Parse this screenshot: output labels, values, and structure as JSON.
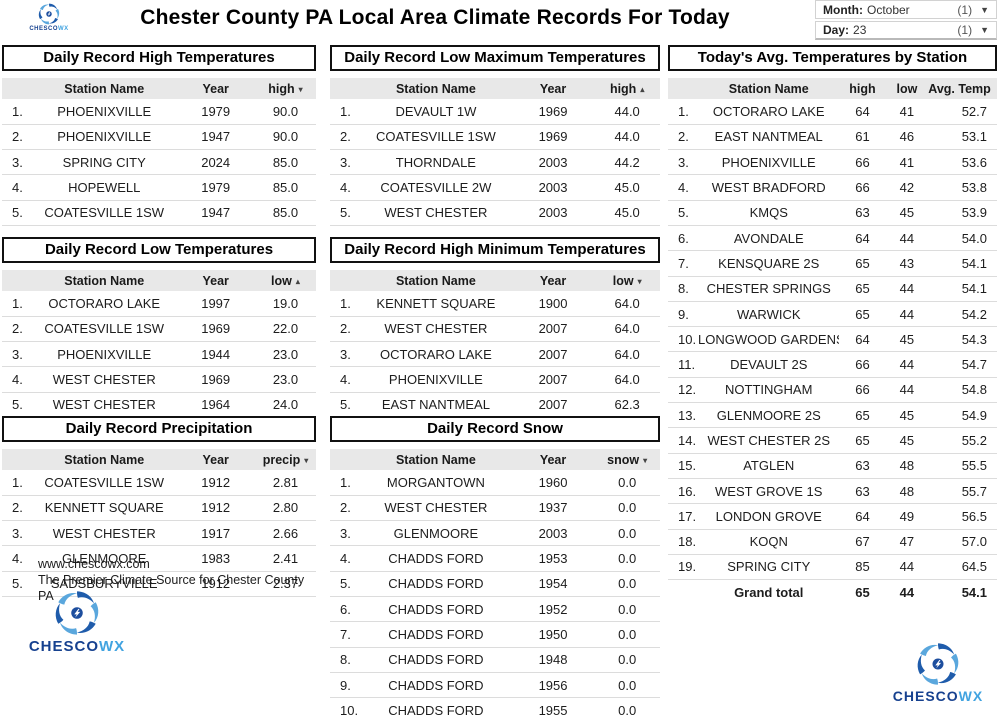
{
  "header": {
    "title": "Chester County PA Local Area Climate Records For Today",
    "filters": {
      "month": {
        "label": "Month:",
        "value": "October",
        "count": "(1)"
      },
      "day": {
        "label": "Day:",
        "value": "23",
        "count": "(1)"
      }
    }
  },
  "logo": {
    "primary": "CHESCO",
    "secondary": "WX"
  },
  "footer": {
    "url": "www.chescowx.com",
    "tagline": "The Premier Climate Source for Chester County PA"
  },
  "tables": {
    "record_high": {
      "title": "Daily Record High Temperatures",
      "columns": [
        {
          "label": "Station Name"
        },
        {
          "label": "Year"
        },
        {
          "label": "high",
          "sort": "desc"
        }
      ],
      "rows": [
        [
          "PHOENIXVILLE",
          "1979",
          "90.0"
        ],
        [
          "PHOENIXVILLE",
          "1947",
          "90.0"
        ],
        [
          "SPRING CITY",
          "2024",
          "85.0"
        ],
        [
          "HOPEWELL",
          "1979",
          "85.0"
        ],
        [
          "COATESVILLE 1SW",
          "1947",
          "85.0"
        ]
      ]
    },
    "record_low_max": {
      "title": "Daily Record Low Maximum Temperatures",
      "columns": [
        {
          "label": "Station Name"
        },
        {
          "label": "Year"
        },
        {
          "label": "high",
          "sort": "asc"
        }
      ],
      "rows": [
        [
          "DEVAULT 1W",
          "1969",
          "44.0"
        ],
        [
          "COATESVILLE 1SW",
          "1969",
          "44.0"
        ],
        [
          "THORNDALE",
          "2003",
          "44.2"
        ],
        [
          "COATESVILLE 2W",
          "2003",
          "45.0"
        ],
        [
          "WEST CHESTER",
          "2003",
          "45.0"
        ]
      ]
    },
    "record_low": {
      "title": "Daily Record Low Temperatures",
      "columns": [
        {
          "label": "Station Name"
        },
        {
          "label": "Year"
        },
        {
          "label": "low",
          "sort": "asc"
        }
      ],
      "rows": [
        [
          "OCTORARO LAKE",
          "1997",
          "19.0"
        ],
        [
          "COATESVILLE 1SW",
          "1969",
          "22.0"
        ],
        [
          "PHOENIXVILLE",
          "1944",
          "23.0"
        ],
        [
          "WEST CHESTER",
          "1969",
          "23.0"
        ],
        [
          "WEST CHESTER",
          "1964",
          "24.0"
        ]
      ]
    },
    "record_high_min": {
      "title": "Daily Record High Minimum Temperatures",
      "columns": [
        {
          "label": "Station Name"
        },
        {
          "label": "Year"
        },
        {
          "label": "low",
          "sort": "desc"
        }
      ],
      "rows": [
        [
          "KENNETT SQUARE",
          "1900",
          "64.0"
        ],
        [
          "WEST CHESTER",
          "2007",
          "64.0"
        ],
        [
          "OCTORARO LAKE",
          "2007",
          "64.0"
        ],
        [
          "PHOENIXVILLE",
          "2007",
          "64.0"
        ],
        [
          "EAST NANTMEAL",
          "2007",
          "62.3"
        ]
      ]
    },
    "record_precip": {
      "title": "Daily Record Precipitation",
      "columns": [
        {
          "label": "Station Name"
        },
        {
          "label": "Year"
        },
        {
          "label": "precip",
          "sort": "desc"
        }
      ],
      "rows": [
        [
          "COATESVILLE 1SW",
          "1912",
          "2.81"
        ],
        [
          "KENNETT SQUARE",
          "1912",
          "2.80"
        ],
        [
          "WEST CHESTER",
          "1917",
          "2.66"
        ],
        [
          "GLENMOORE",
          "1983",
          "2.41"
        ],
        [
          "SADSBURYVILLE",
          "1912",
          "2.37"
        ]
      ]
    },
    "record_snow": {
      "title": "Daily Record Snow",
      "columns": [
        {
          "label": "Station Name"
        },
        {
          "label": "Year"
        },
        {
          "label": "snow",
          "sort": "desc"
        }
      ],
      "rows": [
        [
          "MORGANTOWN",
          "1960",
          "0.0"
        ],
        [
          "WEST CHESTER",
          "1937",
          "0.0"
        ],
        [
          "GLENMOORE",
          "2003",
          "0.0"
        ],
        [
          "CHADDS FORD",
          "1953",
          "0.0"
        ],
        [
          "CHADDS FORD",
          "1954",
          "0.0"
        ],
        [
          "CHADDS FORD",
          "1952",
          "0.0"
        ],
        [
          "CHADDS FORD",
          "1950",
          "0.0"
        ],
        [
          "CHADDS FORD",
          "1948",
          "0.0"
        ],
        [
          "CHADDS FORD",
          "1956",
          "0.0"
        ],
        [
          "CHADDS FORD",
          "1955",
          "0.0"
        ]
      ]
    },
    "avg_today": {
      "title": "Today's Avg. Temperatures by Station",
      "columns": [
        {
          "label": "Station Name"
        },
        {
          "label": "high"
        },
        {
          "label": "low"
        },
        {
          "label": "Avg. Temp"
        }
      ],
      "rows": [
        [
          "OCTORARO LAKE",
          "64",
          "41",
          "52.7"
        ],
        [
          "EAST NANTMEAL",
          "61",
          "46",
          "53.1"
        ],
        [
          "PHOENIXVILLE",
          "66",
          "41",
          "53.6"
        ],
        [
          "WEST BRADFORD",
          "66",
          "42",
          "53.8"
        ],
        [
          "KMQS",
          "63",
          "45",
          "53.9"
        ],
        [
          "AVONDALE",
          "64",
          "44",
          "54.0"
        ],
        [
          "KENSQUARE 2S",
          "65",
          "43",
          "54.1"
        ],
        [
          "CHESTER SPRINGS",
          "65",
          "44",
          "54.1"
        ],
        [
          "WARWICK",
          "65",
          "44",
          "54.2"
        ],
        [
          "LONGWOOD GARDENS",
          "64",
          "45",
          "54.3"
        ],
        [
          "DEVAULT 2S",
          "66",
          "44",
          "54.7"
        ],
        [
          "NOTTINGHAM",
          "66",
          "44",
          "54.8"
        ],
        [
          "GLENMOORE 2S",
          "65",
          "45",
          "54.9"
        ],
        [
          "WEST CHESTER 2S",
          "65",
          "45",
          "55.2"
        ],
        [
          "ATGLEN",
          "63",
          "48",
          "55.5"
        ],
        [
          "WEST GROVE 1S",
          "63",
          "48",
          "55.7"
        ],
        [
          "LONDON GROVE",
          "64",
          "49",
          "56.5"
        ],
        [
          "KOQN",
          "67",
          "47",
          "57.0"
        ],
        [
          "SPRING CITY",
          "85",
          "44",
          "64.5"
        ]
      ],
      "grand_total": {
        "label": "Grand total",
        "values": [
          "65",
          "44",
          "54.1"
        ]
      }
    }
  }
}
